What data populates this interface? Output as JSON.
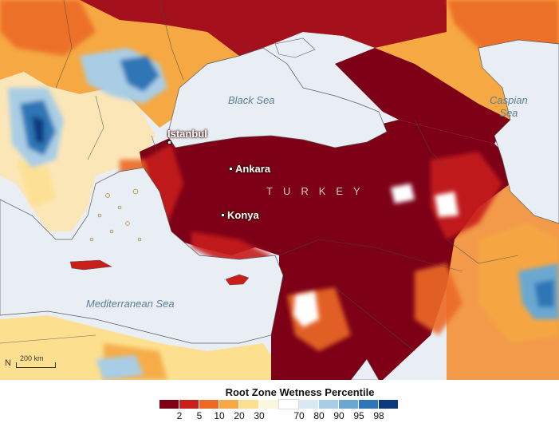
{
  "map": {
    "sea_labels": {
      "black_sea": "Black Sea",
      "caspian_sea": "Caspian\nSea",
      "mediterranean_sea": "Mediterranean Sea"
    },
    "cities": {
      "istanbul": "Istanbul",
      "ankara": "Ankara",
      "konya": "Konya"
    },
    "country_label": "TURKEY",
    "scale_bar": "200 km",
    "north_symbol": "N"
  },
  "legend": {
    "title": "Root Zone Wetness Percentile",
    "swatches": [
      {
        "color": "#7d0017"
      },
      {
        "color": "#c81f1a"
      },
      {
        "color": "#ec6a25"
      },
      {
        "color": "#f6a843"
      },
      {
        "color": "#fde08f"
      },
      {
        "color": "#fbf7df"
      },
      {
        "color": "#ffffff"
      },
      {
        "color": "#d9e9f4"
      },
      {
        "color": "#a9cde5"
      },
      {
        "color": "#6aa8d2"
      },
      {
        "color": "#2e76b6"
      },
      {
        "color": "#0c3a7d"
      }
    ],
    "ticks": [
      "2",
      "5",
      "10",
      "20",
      "30",
      "70",
      "80",
      "90",
      "95",
      "98"
    ]
  },
  "colors": {
    "sea": "#e9eef4",
    "extreme_dry": "#7d0017",
    "dry": "#c81f1a",
    "moderate": "#ec6a25",
    "wet": "#2e76b6"
  }
}
